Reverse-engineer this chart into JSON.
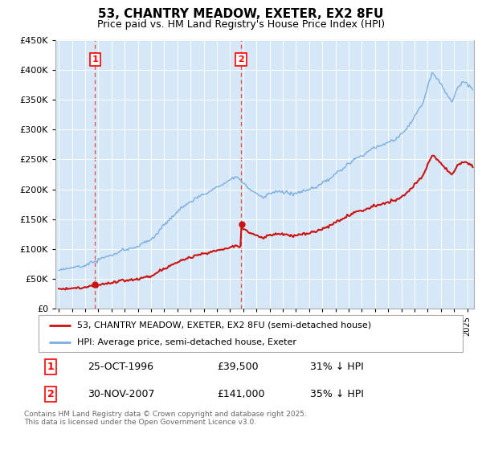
{
  "title": "53, CHANTRY MEADOW, EXETER, EX2 8FU",
  "subtitle": "Price paid vs. HM Land Registry's House Price Index (HPI)",
  "legend_line1": "53, CHANTRY MEADOW, EXETER, EX2 8FU (semi-detached house)",
  "legend_line2": "HPI: Average price, semi-detached house, Exeter",
  "sale1_date": "25-OCT-1996",
  "sale1_price": 39500,
  "sale1_label": "31% ↓ HPI",
  "sale2_date": "30-NOV-2007",
  "sale2_price": 141000,
  "sale2_label": "35% ↓ HPI",
  "footer": "Contains HM Land Registry data © Crown copyright and database right 2025.\nThis data is licensed under the Open Government Licence v3.0.",
  "hpi_color": "#7aade0",
  "hpi_fill_color": "#d6e8f7",
  "price_color": "#cc1111",
  "vline_color": "#ee4444",
  "ylim_max": 450000,
  "ylim_min": 0,
  "xlim_min": 1993.75,
  "xlim_max": 2025.5
}
